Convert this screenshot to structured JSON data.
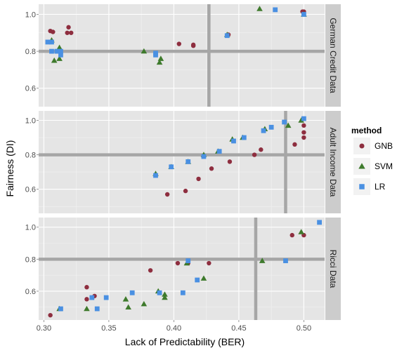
{
  "chart_data": {
    "type": "scatter",
    "xlabel": "Lack of Predictability (BER)",
    "ylabel": "Fairness (DI)",
    "xlim": [
      0.296,
      0.516
    ],
    "x_ticks": [
      "0.30",
      "0.35",
      "0.40",
      "0.45",
      "0.50"
    ],
    "x_tick_values": [
      0.3,
      0.35,
      0.4,
      0.45,
      0.5
    ],
    "y_ticks": [
      "0.6",
      "0.8",
      "1.0"
    ],
    "y_tick_values": [
      0.6,
      0.8,
      1.0
    ],
    "grid": true,
    "legend_position": "right",
    "legend": {
      "title": "method",
      "entries": [
        {
          "label": "GNB",
          "shape": "circle",
          "color": "#8e2e3f"
        },
        {
          "label": "SVM",
          "shape": "triangle",
          "color": "#3e7a2c"
        },
        {
          "label": "LR",
          "shape": "square",
          "color": "#4a90e2"
        }
      ]
    },
    "facets": [
      {
        "strip": "German Credit Data",
        "ylim": [
          0.5,
          1.055
        ],
        "hline": 0.8,
        "vline": 0.427,
        "series": [
          {
            "name": "GNB",
            "points": [
              [
                0.305,
                0.91
              ],
              [
                0.307,
                0.905
              ],
              [
                0.318,
                0.9
              ],
              [
                0.319,
                0.93
              ],
              [
                0.321,
                0.9
              ],
              [
                0.404,
                0.84
              ],
              [
                0.415,
                0.83
              ],
              [
                0.415,
                0.835
              ],
              [
                0.442,
                0.89
              ],
              [
                0.499,
                1.015
              ],
              [
                0.5,
                1.015
              ]
            ]
          },
          {
            "name": "SVM",
            "points": [
              [
                0.306,
                0.86
              ],
              [
                0.308,
                0.75
              ],
              [
                0.312,
                0.76
              ],
              [
                0.312,
                0.82
              ],
              [
                0.377,
                0.8
              ],
              [
                0.389,
                0.74
              ],
              [
                0.39,
                0.76
              ],
              [
                0.441,
                0.89
              ],
              [
                0.466,
                1.03
              ],
              [
                0.5,
                1.0
              ]
            ]
          },
          {
            "name": "LR",
            "points": [
              [
                0.303,
                0.85
              ],
              [
                0.306,
                0.8
              ],
              [
                0.306,
                0.85
              ],
              [
                0.31,
                0.8
              ],
              [
                0.313,
                0.8
              ],
              [
                0.313,
                0.78
              ],
              [
                0.386,
                0.78
              ],
              [
                0.386,
                0.79
              ],
              [
                0.441,
                0.885
              ],
              [
                0.478,
                1.025
              ],
              [
                0.5,
                1.0
              ]
            ]
          }
        ]
      },
      {
        "strip": "Adult Income Data",
        "ylim": [
          0.46,
          1.055
        ],
        "hline": 0.8,
        "vline": 0.486,
        "series": [
          {
            "name": "GNB",
            "points": [
              [
                0.395,
                0.57
              ],
              [
                0.409,
                0.59
              ],
              [
                0.419,
                0.66
              ],
              [
                0.429,
                0.72
              ],
              [
                0.443,
                0.76
              ],
              [
                0.462,
                0.8
              ],
              [
                0.467,
                0.83
              ],
              [
                0.493,
                0.86
              ],
              [
                0.5,
                0.9
              ],
              [
                0.5,
                0.93
              ],
              [
                0.5,
                0.97
              ]
            ]
          },
          {
            "name": "SVM",
            "points": [
              [
                0.386,
                0.69
              ],
              [
                0.398,
                0.73
              ],
              [
                0.411,
                0.76
              ],
              [
                0.423,
                0.8
              ],
              [
                0.434,
                0.82
              ],
              [
                0.445,
                0.89
              ],
              [
                0.453,
                0.9
              ],
              [
                0.47,
                0.95
              ],
              [
                0.488,
                0.97
              ],
              [
                0.498,
                1.0
              ]
            ]
          },
          {
            "name": "LR",
            "points": [
              [
                0.386,
                0.68
              ],
              [
                0.398,
                0.73
              ],
              [
                0.411,
                0.76
              ],
              [
                0.423,
                0.79
              ],
              [
                0.435,
                0.82
              ],
              [
                0.446,
                0.88
              ],
              [
                0.454,
                0.9
              ],
              [
                0.469,
                0.94
              ],
              [
                0.475,
                0.96
              ],
              [
                0.485,
                0.99
              ],
              [
                0.5,
                1.01
              ]
            ]
          }
        ]
      },
      {
        "strip": "Ricci Data",
        "ylim": [
          0.42,
          1.06
        ],
        "hline": 0.8,
        "vline": 0.463,
        "series": [
          {
            "name": "GNB",
            "points": [
              [
                0.305,
                0.45
              ],
              [
                0.333,
                0.55
              ],
              [
                0.333,
                0.625
              ],
              [
                0.339,
                0.57
              ],
              [
                0.382,
                0.73
              ],
              [
                0.403,
                0.775
              ],
              [
                0.411,
                0.775
              ],
              [
                0.427,
                0.775
              ],
              [
                0.491,
                0.95
              ],
              [
                0.5,
                0.95
              ]
            ]
          },
          {
            "name": "SVM",
            "points": [
              [
                0.312,
                0.49
              ],
              [
                0.333,
                0.49
              ],
              [
                0.363,
                0.55
              ],
              [
                0.365,
                0.5
              ],
              [
                0.377,
                0.52
              ],
              [
                0.388,
                0.6
              ],
              [
                0.393,
                0.56
              ],
              [
                0.393,
                0.58
              ],
              [
                0.41,
                0.775
              ],
              [
                0.423,
                0.68
              ],
              [
                0.468,
                0.79
              ],
              [
                0.498,
                0.97
              ]
            ]
          },
          {
            "name": "LR",
            "points": [
              [
                0.313,
                0.49
              ],
              [
                0.337,
                0.56
              ],
              [
                0.341,
                0.49
              ],
              [
                0.348,
                0.56
              ],
              [
                0.368,
                0.59
              ],
              [
                0.389,
                0.59
              ],
              [
                0.407,
                0.59
              ],
              [
                0.411,
                0.79
              ],
              [
                0.418,
                0.67
              ],
              [
                0.486,
                0.79
              ],
              [
                0.512,
                1.03
              ]
            ]
          }
        ]
      }
    ]
  }
}
